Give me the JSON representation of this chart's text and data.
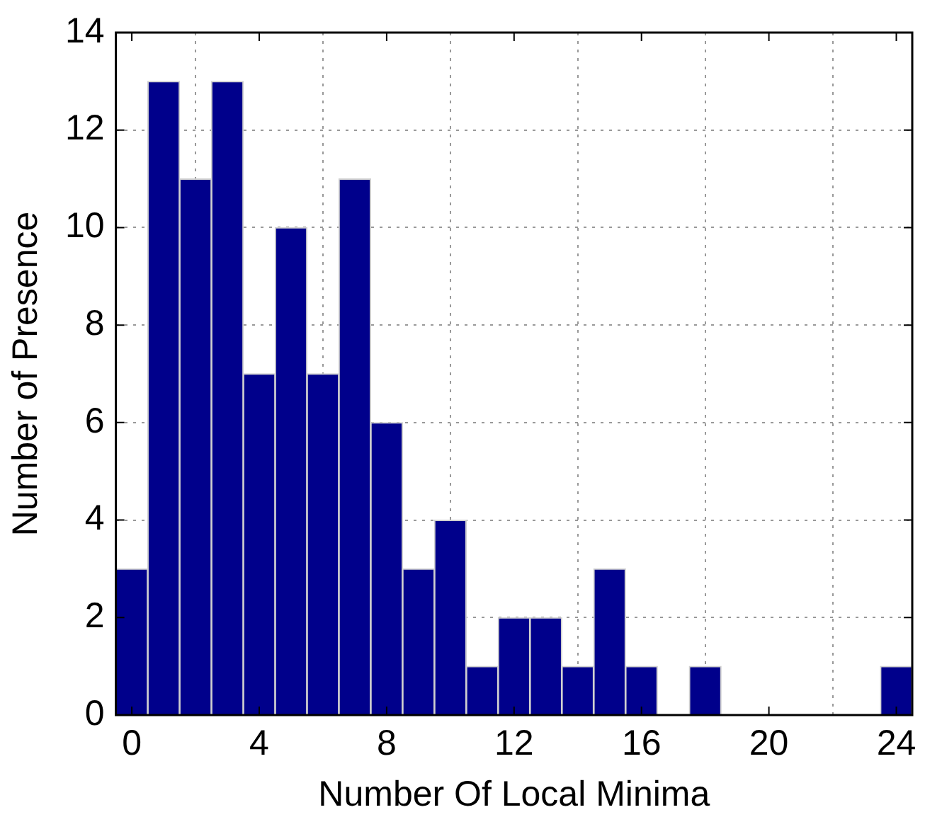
{
  "chart_data": {
    "type": "histogram",
    "xlabel": "Number Of Local Minima",
    "ylabel": "Number of Presence",
    "bins": [
      -0.5,
      0.5,
      1.5,
      2.5,
      3.5,
      4.5,
      5.5,
      6.5,
      7.5,
      8.5,
      9.5,
      10.5,
      11.5,
      12.5,
      13.5,
      14.5,
      15.5,
      16.5,
      17.5,
      18.5,
      19.5,
      20.5,
      21.5,
      22.5,
      23.5,
      24.5
    ],
    "values": [
      3,
      13,
      11,
      13,
      7,
      10,
      7,
      11,
      6,
      3,
      4,
      1,
      2,
      2,
      1,
      3,
      1,
      0,
      1,
      0,
      0,
      0,
      0,
      0,
      1
    ],
    "color": "#00008b",
    "xlim": [
      -0.5,
      24.5
    ],
    "xticks": [
      0,
      4,
      8,
      12,
      16,
      20,
      24
    ],
    "ylim": [
      0,
      14
    ],
    "yticks": [
      0,
      2,
      4,
      6,
      8,
      10,
      12,
      14
    ],
    "grid": true,
    "legend": false
  }
}
